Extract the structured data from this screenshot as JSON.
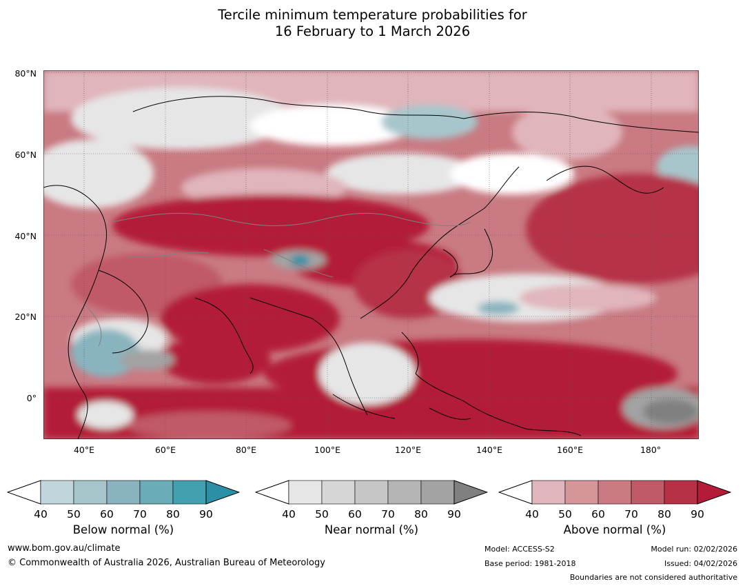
{
  "title_line1": "Tercile minimum temperature probabilities for",
  "title_line2": "16 February to 1 March 2026",
  "map": {
    "lat_labels": [
      "80°N",
      "60°N",
      "40°N",
      "20°N",
      "0°"
    ],
    "lon_labels": [
      "40°E",
      "60°E",
      "80°E",
      "100°E",
      "120°E",
      "140°E",
      "160°E",
      "180°"
    ],
    "lat_range": [
      -10,
      80
    ],
    "lon_range": [
      30,
      191
    ]
  },
  "colorbars": {
    "below": {
      "label": "Below normal (%)",
      "ticks": [
        "40",
        "50",
        "60",
        "70",
        "80",
        "90"
      ],
      "colors": [
        "#ffffff",
        "#c0d5dc",
        "#a7c6cc",
        "#89b4bf",
        "#6aacb8",
        "#43a0b1",
        "#2b8fa6"
      ]
    },
    "near": {
      "label": "Near normal (%)",
      "ticks": [
        "40",
        "50",
        "60",
        "70",
        "80",
        "90"
      ],
      "colors": [
        "#ffffff",
        "#e6e6e6",
        "#d6d6d6",
        "#c6c6c6",
        "#b5b5b5",
        "#a3a3a3",
        "#808080"
      ]
    },
    "above": {
      "label": "Above normal (%)",
      "ticks": [
        "40",
        "50",
        "60",
        "70",
        "80",
        "90"
      ],
      "colors": [
        "#ffffff",
        "#e0b5bb",
        "#d59599",
        "#c97a82",
        "#c05a68",
        "#b63146",
        "#b31b38"
      ]
    }
  },
  "footer": {
    "url": "www.bom.gov.au/climate",
    "copyright": "© Commonwealth of Australia 2026, Australian Bureau of Meteorology",
    "model": "Model: ACCESS-S2",
    "base_period": "Base period: 1981-2018",
    "model_run": "Model run: 02/02/2026",
    "issued": "Issued: 04/02/2026",
    "boundaries": "Boundaries are not considered authoritative"
  }
}
